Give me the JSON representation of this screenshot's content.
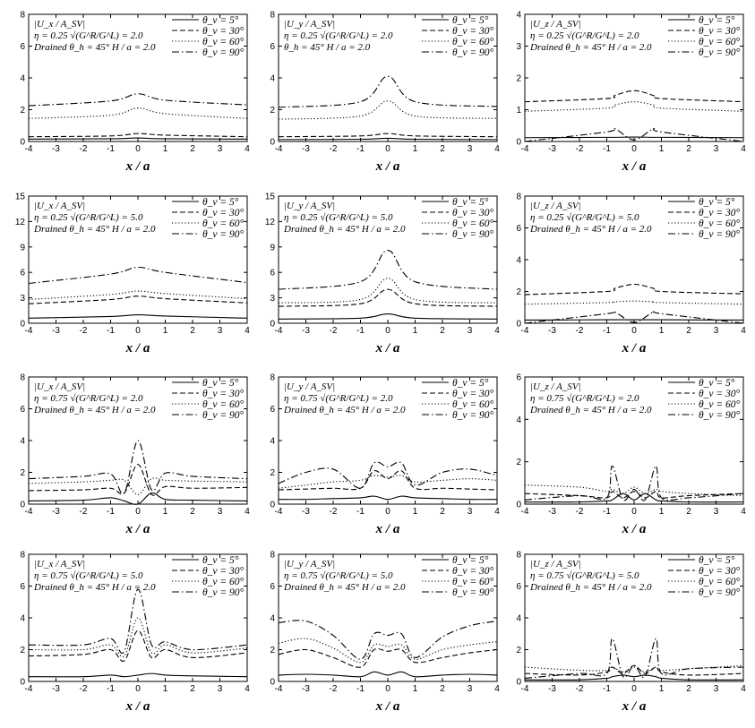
{
  "styles": [
    "solid",
    "dash",
    "dot",
    "dashdot"
  ],
  "chart_data": [
    {
      "type": "line",
      "title_lines": [
        "|U_x / A_SV|",
        "η = 0.25  √(G^R/G^L) = 2.0",
        "Drained   θ_h = 45°   H / a = 2.0"
      ],
      "xlabel": "x / a",
      "xlim": [
        -4,
        4
      ],
      "ylim": [
        0,
        8
      ],
      "yticks": [
        0,
        2,
        4,
        6,
        8
      ],
      "x": [
        -4,
        -1,
        0,
        1,
        4
      ],
      "series": [
        {
          "name": "θ_v = 5°",
          "values": [
            0.15,
            0.17,
            0.22,
            0.17,
            0.15
          ]
        },
        {
          "name": "θ_v = 30°",
          "values": [
            0.3,
            0.35,
            0.5,
            0.4,
            0.3
          ]
        },
        {
          "name": "θ_v = 60°",
          "values": [
            1.45,
            1.65,
            2.1,
            1.75,
            1.45
          ]
        },
        {
          "name": "θ_v = 90°",
          "values": [
            2.25,
            2.55,
            3.0,
            2.6,
            2.3
          ]
        }
      ]
    },
    {
      "type": "line",
      "title_lines": [
        "|U_y / A_SV|",
        "η = 0.25  √(G^R/G^L) = 2.0",
        "θ_h = 45°   H / a = 2.0"
      ],
      "xlabel": "x / a",
      "xlim": [
        -4,
        4
      ],
      "ylim": [
        0,
        8
      ],
      "yticks": [
        0,
        2,
        4,
        6,
        8
      ],
      "x": [
        -4,
        -1,
        0,
        1,
        4
      ],
      "series": [
        {
          "name": "θ_v = 5°",
          "values": [
            0.12,
            0.14,
            0.2,
            0.14,
            0.12
          ]
        },
        {
          "name": "θ_v = 30°",
          "values": [
            0.3,
            0.35,
            0.5,
            0.35,
            0.3
          ]
        },
        {
          "name": "θ_v = 60°",
          "values": [
            1.4,
            1.6,
            2.55,
            1.6,
            1.45
          ]
        },
        {
          "name": "θ_v = 90°",
          "values": [
            2.15,
            2.5,
            4.1,
            2.5,
            2.2
          ]
        }
      ]
    },
    {
      "type": "line",
      "title_lines": [
        "|U_z / A_SV|",
        "η = 0.25  √(G^R/G^L) = 2.0",
        "Drained   θ_h = 45°   H / a = 2.0"
      ],
      "xlabel": "x / a",
      "xlim": [
        -4,
        4
      ],
      "ylim": [
        0,
        4
      ],
      "yticks": [
        0,
        1,
        2,
        3,
        4
      ],
      "x": [
        -4,
        -1,
        -0.7,
        0,
        0.7,
        1,
        4
      ],
      "series": [
        {
          "name": "θ_v = 5°",
          "values": [
            0.12,
            0.13,
            0.13,
            0.14,
            0.13,
            0.13,
            0.12
          ]
        },
        {
          "name": "θ_v = 30°",
          "values": [
            1.25,
            1.35,
            1.45,
            1.6,
            1.45,
            1.35,
            1.25
          ]
        },
        {
          "name": "θ_v = 60°",
          "values": [
            0.95,
            1.05,
            1.15,
            1.25,
            1.15,
            1.05,
            0.95
          ]
        },
        {
          "name": "θ_v = 90°",
          "values": [
            0.0,
            0.3,
            0.4,
            0.05,
            0.4,
            0.3,
            0.0
          ]
        }
      ]
    },
    {
      "type": "line",
      "title_lines": [
        "|U_x / A_SV|",
        "η = 0.25  √(G^R/G^L) = 5.0",
        "Drained   θ_h = 45°   H / a = 2.0"
      ],
      "xlabel": "x / a",
      "xlim": [
        -4,
        4
      ],
      "ylim": [
        0,
        15
      ],
      "yticks": [
        0,
        3,
        6,
        9,
        12,
        15
      ],
      "x": [
        -4,
        -1,
        0,
        1,
        4
      ],
      "series": [
        {
          "name": "θ_v = 5°",
          "values": [
            0.6,
            0.8,
            1.0,
            0.85,
            0.6
          ]
        },
        {
          "name": "θ_v = 30°",
          "values": [
            2.3,
            2.8,
            3.2,
            2.9,
            2.4
          ]
        },
        {
          "name": "θ_v = 60°",
          "values": [
            2.8,
            3.4,
            3.8,
            3.5,
            2.9
          ]
        },
        {
          "name": "θ_v = 90°",
          "values": [
            4.7,
            5.8,
            6.6,
            6.0,
            4.8
          ]
        }
      ]
    },
    {
      "type": "line",
      "title_lines": [
        "|U_y / A_SV|",
        "η = 0.25  √(G^R/G^L) = 5.0",
        "Drained   θ_h = 45°   H / a = 2.0"
      ],
      "xlabel": "x / a",
      "xlim": [
        -4,
        4
      ],
      "ylim": [
        0,
        15
      ],
      "yticks": [
        0,
        3,
        6,
        9,
        12,
        15
      ],
      "x": [
        -4,
        -1,
        0,
        1,
        4
      ],
      "series": [
        {
          "name": "θ_v = 5°",
          "values": [
            0.5,
            0.6,
            1.1,
            0.6,
            0.5
          ]
        },
        {
          "name": "θ_v = 30°",
          "values": [
            2.0,
            2.3,
            4.0,
            2.3,
            2.0
          ]
        },
        {
          "name": "θ_v = 60°",
          "values": [
            2.4,
            2.8,
            5.3,
            2.8,
            2.4
          ]
        },
        {
          "name": "θ_v = 90°",
          "values": [
            4.0,
            4.9,
            8.6,
            4.9,
            4.0
          ]
        }
      ]
    },
    {
      "type": "line",
      "title_lines": [
        "|U_z / A_SV|",
        "η = 0.25  √(G^R/G^L) = 5.0",
        "Drained   θ_h = 45°   H / a = 2.0"
      ],
      "xlabel": "x / a",
      "xlim": [
        -4,
        4
      ],
      "ylim": [
        0,
        8
      ],
      "yticks": [
        0,
        2,
        4,
        6,
        8
      ],
      "x": [
        -4,
        -1,
        -0.7,
        0,
        0.7,
        1,
        4
      ],
      "series": [
        {
          "name": "θ_v = 5°",
          "values": [
            0.2,
            0.22,
            0.22,
            0.22,
            0.22,
            0.22,
            0.2
          ]
        },
        {
          "name": "θ_v = 30°",
          "values": [
            1.8,
            2.0,
            2.2,
            2.45,
            2.2,
            2.0,
            1.85
          ]
        },
        {
          "name": "θ_v = 60°",
          "values": [
            1.2,
            1.3,
            1.35,
            1.4,
            1.35,
            1.3,
            1.2
          ]
        },
        {
          "name": "θ_v = 90°",
          "values": [
            0.0,
            0.6,
            0.7,
            0.05,
            0.7,
            0.6,
            0.0
          ]
        }
      ]
    },
    {
      "type": "line",
      "title_lines": [
        "|U_x / A_SV|",
        "η = 0.75  √(G^R/G^L) = 2.0",
        "Drained   θ_h = 45°   H / a = 2.0"
      ],
      "xlabel": "x / a",
      "xlim": [
        -4,
        4
      ],
      "ylim": [
        0,
        8
      ],
      "yticks": [
        0,
        2,
        4,
        6,
        8
      ],
      "x": [
        -4,
        -2,
        -1,
        -0.5,
        0,
        0.5,
        1,
        2,
        4
      ],
      "series": [
        {
          "name": "θ_v = 5°",
          "values": [
            0.2,
            0.25,
            0.4,
            0.2,
            0.0,
            0.7,
            0.3,
            0.25,
            0.2
          ]
        },
        {
          "name": "θ_v = 30°",
          "values": [
            0.85,
            0.9,
            1.0,
            0.7,
            2.5,
            0.6,
            1.1,
            1.0,
            1.05
          ]
        },
        {
          "name": "θ_v = 60°",
          "values": [
            1.3,
            1.4,
            1.5,
            1.5,
            0.6,
            1.6,
            1.5,
            1.45,
            1.4
          ]
        },
        {
          "name": "θ_v = 90°",
          "values": [
            1.6,
            1.75,
            1.9,
            0.7,
            4.0,
            0.9,
            1.95,
            1.75,
            1.6
          ]
        }
      ]
    },
    {
      "type": "line",
      "title_lines": [
        "|U_y / A_SV|",
        "η = 0.75  √(G^R/G^L) = 2.0",
        "Drained   θ_h = 45°   H / a = 2.0"
      ],
      "xlabel": "x / a",
      "xlim": [
        -4,
        4
      ],
      "ylim": [
        0,
        8
      ],
      "yticks": [
        0,
        2,
        4,
        6,
        8
      ],
      "x": [
        -4,
        -3,
        -2,
        -1,
        -0.5,
        0,
        0.5,
        1,
        2,
        3,
        4
      ],
      "series": [
        {
          "name": "θ_v = 5°",
          "values": [
            0.3,
            0.3,
            0.35,
            0.4,
            0.5,
            0.3,
            0.5,
            0.4,
            0.35,
            0.3,
            0.3
          ]
        },
        {
          "name": "θ_v = 30°",
          "values": [
            0.9,
            0.95,
            1.0,
            1.0,
            2.1,
            1.6,
            2.1,
            1.0,
            1.0,
            0.95,
            0.9
          ]
        },
        {
          "name": "θ_v = 60°",
          "values": [
            1.0,
            1.2,
            1.4,
            1.5,
            1.8,
            1.7,
            1.8,
            1.4,
            1.5,
            1.6,
            1.5
          ]
        },
        {
          "name": "θ_v = 90°",
          "values": [
            1.3,
            2.0,
            2.2,
            1.0,
            2.6,
            2.35,
            2.6,
            1.2,
            2.0,
            2.2,
            1.8
          ]
        }
      ]
    },
    {
      "type": "line",
      "title_lines": [
        "|U_z / A_SV|",
        "η = 0.75  √(G^R/G^L) = 2.0",
        "Drained   θ_h = 45°   H / a = 2.0"
      ],
      "xlabel": "x / a",
      "xlim": [
        -4,
        4
      ],
      "ylim": [
        0,
        6
      ],
      "yticks": [
        0,
        2,
        4,
        6
      ],
      "x": [
        -4,
        -2,
        -1,
        -0.8,
        -0.4,
        0,
        0.4,
        0.8,
        1,
        2,
        4
      ],
      "series": [
        {
          "name": "θ_v = 5°",
          "values": [
            0.1,
            0.1,
            0.15,
            0.2,
            0.5,
            0.2,
            0.5,
            0.2,
            0.15,
            0.1,
            0.1
          ]
        },
        {
          "name": "θ_v = 30°",
          "values": [
            0.5,
            0.4,
            0.3,
            0.6,
            0.3,
            0.6,
            0.3,
            0.6,
            0.3,
            0.4,
            0.5
          ]
        },
        {
          "name": "θ_v = 60°",
          "values": [
            0.9,
            0.8,
            0.6,
            0.7,
            0.5,
            0.8,
            0.5,
            0.7,
            0.6,
            0.5,
            0.4
          ]
        },
        {
          "name": "θ_v = 90°",
          "values": [
            0.2,
            0.4,
            0.3,
            1.8,
            0.2,
            0.7,
            0.2,
            1.8,
            0.3,
            0.3,
            0.5
          ]
        }
      ]
    },
    {
      "type": "line",
      "title_lines": [
        "|U_x / A_SV|",
        "η = 0.75  √(G^R/G^L) = 5.0",
        "Drained   θ_h = 45°   H / a = 2.0"
      ],
      "xlabel": "x / a",
      "xlim": [
        -4,
        4
      ],
      "ylim": [
        0,
        8
      ],
      "yticks": [
        0,
        2,
        4,
        6,
        8
      ],
      "x": [
        -4,
        -2,
        -1,
        -0.5,
        0,
        0.5,
        1,
        2,
        4
      ],
      "series": [
        {
          "name": "θ_v = 5°",
          "values": [
            0.3,
            0.3,
            0.4,
            0.3,
            0.4,
            0.5,
            0.4,
            0.35,
            0.3
          ]
        },
        {
          "name": "θ_v = 30°",
          "values": [
            1.6,
            1.7,
            2.0,
            1.3,
            3.2,
            1.5,
            2.0,
            1.5,
            1.8
          ]
        },
        {
          "name": "θ_v = 60°",
          "values": [
            2.0,
            2.0,
            2.3,
            1.6,
            4.0,
            1.8,
            2.3,
            1.8,
            2.1
          ]
        },
        {
          "name": "θ_v = 90°",
          "values": [
            2.3,
            2.3,
            2.7,
            1.9,
            5.8,
            2.3,
            2.5,
            2.0,
            2.3
          ]
        }
      ]
    },
    {
      "type": "line",
      "title_lines": [
        "|U_y / A_SV|",
        "η = 0.75  √(G^R/G^L) = 5.0",
        "Drained   θ_h = 45°   H / a = 2.0"
      ],
      "xlabel": "x / a",
      "xlim": [
        -4,
        4
      ],
      "ylim": [
        0,
        8
      ],
      "yticks": [
        0,
        2,
        4,
        6,
        8
      ],
      "x": [
        -4,
        -3,
        -2,
        -1,
        -0.5,
        0,
        0.5,
        1,
        2,
        3,
        4
      ],
      "series": [
        {
          "name": "θ_v = 5°",
          "values": [
            0.4,
            0.45,
            0.4,
            0.3,
            0.6,
            0.4,
            0.6,
            0.3,
            0.4,
            0.45,
            0.4
          ]
        },
        {
          "name": "θ_v = 30°",
          "values": [
            1.7,
            2.0,
            1.5,
            0.9,
            2.0,
            1.9,
            2.0,
            1.2,
            1.5,
            1.8,
            2.0
          ]
        },
        {
          "name": "θ_v = 60°",
          "values": [
            2.4,
            2.7,
            2.1,
            1.2,
            2.3,
            2.2,
            2.3,
            1.4,
            2.0,
            2.3,
            2.5
          ]
        },
        {
          "name": "θ_v = 90°",
          "values": [
            3.7,
            3.8,
            2.9,
            1.4,
            3.0,
            2.9,
            3.0,
            1.5,
            2.8,
            3.5,
            3.8
          ]
        }
      ]
    },
    {
      "type": "line",
      "title_lines": [
        "|U_z / A_SV|",
        "η = 0.75  √(G^R/G^L) = 5.0",
        "Drained   θ_h = 45°   H / a = 2.0"
      ],
      "xlabel": "x / a",
      "xlim": [
        -4,
        4
      ],
      "ylim": [
        0,
        8
      ],
      "yticks": [
        0,
        2,
        4,
        6,
        8
      ],
      "x": [
        -4,
        -2,
        -1,
        -0.8,
        -0.4,
        0,
        0.4,
        0.8,
        1,
        2,
        4
      ],
      "series": [
        {
          "name": "θ_v = 5°",
          "values": [
            0.1,
            0.1,
            0.2,
            0.3,
            0.4,
            0.3,
            0.4,
            0.3,
            0.2,
            0.1,
            0.1
          ]
        },
        {
          "name": "θ_v = 30°",
          "values": [
            0.5,
            0.4,
            0.6,
            0.9,
            0.5,
            1.0,
            0.5,
            0.9,
            0.6,
            0.4,
            0.5
          ]
        },
        {
          "name": "θ_v = 60°",
          "values": [
            0.9,
            0.7,
            0.7,
            0.9,
            0.6,
            0.9,
            0.6,
            0.9,
            0.7,
            0.8,
            1.0
          ]
        },
        {
          "name": "θ_v = 90°",
          "values": [
            0.2,
            0.5,
            0.5,
            2.7,
            0.3,
            1.0,
            0.3,
            2.7,
            0.5,
            0.8,
            0.9
          ]
        }
      ]
    }
  ]
}
